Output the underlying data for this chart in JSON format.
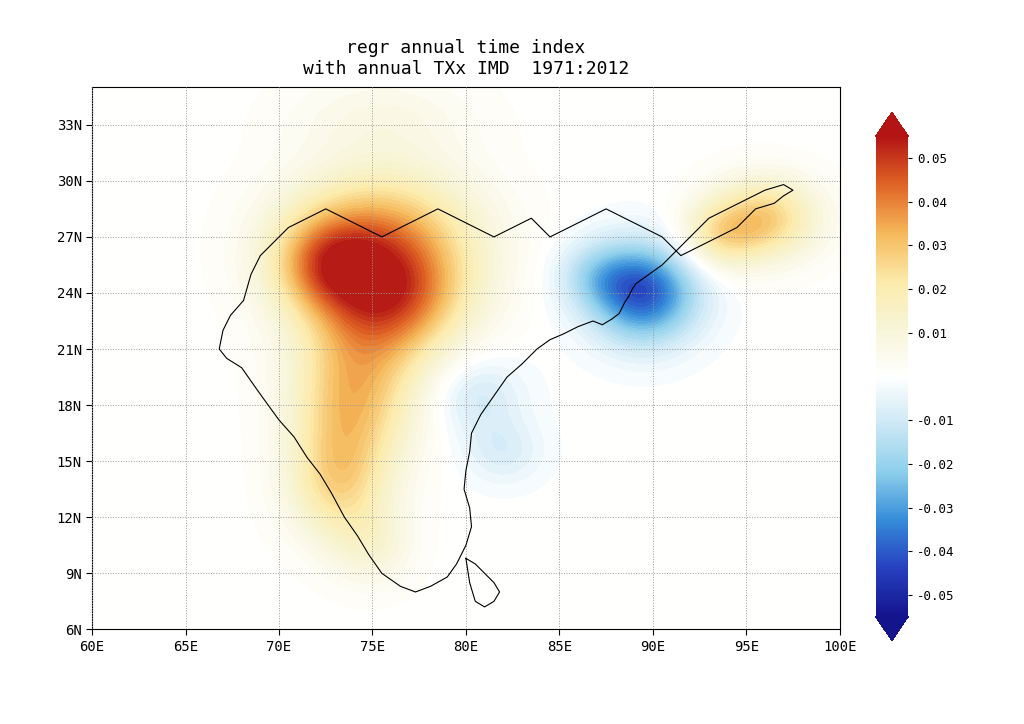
{
  "title_line1": "regr annual time index",
  "title_line2": "with annual TXx IMD  1971:2012",
  "title_fontsize": 13,
  "lon_min": 60,
  "lon_max": 100,
  "lat_min": 6,
  "lat_max": 35,
  "xticks": [
    60,
    65,
    70,
    75,
    80,
    85,
    90,
    95,
    100
  ],
  "yticks": [
    6,
    9,
    12,
    15,
    18,
    21,
    24,
    27,
    30,
    33
  ],
  "xtick_labels": [
    "60E",
    "65E",
    "70E",
    "75E",
    "80E",
    "85E",
    "90E",
    "95E",
    "100E"
  ],
  "ytick_labels": [
    "6N",
    "9N",
    "12N",
    "15N",
    "18N",
    "21N",
    "24N",
    "27N",
    "30N",
    "33N"
  ],
  "colors_neg": [
    "#14148D",
    "#2640BF",
    "#358CD9",
    "#8DCFEB",
    "#CCE8F5"
  ],
  "colors_zero": "#FFFFFF",
  "colors_pos": [
    "#F7F5D8",
    "#FCEAAA",
    "#F5B85A",
    "#E06525",
    "#B31515"
  ],
  "cbar_ticks": [
    0.05,
    0.04,
    0.03,
    0.02,
    0.01,
    -0.01,
    -0.02,
    -0.03,
    -0.04,
    -0.05
  ],
  "grid_color": "#999999",
  "background_color": "#ffffff",
  "warm_blobs": [
    {
      "lon": 75.5,
      "lat": 26.5,
      "amp": 0.038,
      "s_lon": 3.5,
      "s_lat": 2.8
    },
    {
      "lon": 72.5,
      "lat": 25.5,
      "amp": 0.025,
      "s_lon": 2.0,
      "s_lat": 1.8
    },
    {
      "lon": 76.5,
      "lat": 23.5,
      "amp": 0.022,
      "s_lon": 2.5,
      "s_lat": 2.0
    },
    {
      "lon": 74.5,
      "lat": 20.0,
      "amp": 0.022,
      "s_lon": 2.5,
      "s_lat": 3.0
    },
    {
      "lon": 73.5,
      "lat": 16.5,
      "amp": 0.018,
      "s_lon": 2.0,
      "s_lat": 3.0
    },
    {
      "lon": 73.0,
      "lat": 13.5,
      "amp": 0.015,
      "s_lon": 1.8,
      "s_lat": 2.0
    },
    {
      "lon": 96.0,
      "lat": 28.0,
      "amp": 0.028,
      "s_lon": 2.0,
      "s_lat": 1.5
    },
    {
      "lon": 93.5,
      "lat": 27.0,
      "amp": 0.018,
      "s_lon": 1.5,
      "s_lat": 1.2
    },
    {
      "lon": 75.0,
      "lat": 10.5,
      "amp": 0.01,
      "s_lon": 1.5,
      "s_lat": 1.5
    }
  ],
  "cool_blobs": [
    {
      "lon": 89.5,
      "lat": 24.0,
      "amp": -0.042,
      "s_lon": 2.0,
      "s_lat": 1.8
    },
    {
      "lon": 87.0,
      "lat": 25.0,
      "amp": -0.012,
      "s_lon": 1.5,
      "s_lat": 1.2
    },
    {
      "lon": 80.5,
      "lat": 18.5,
      "amp": -0.01,
      "s_lon": 1.8,
      "s_lat": 1.5
    },
    {
      "lon": 82.0,
      "lat": 15.5,
      "amp": -0.008,
      "s_lon": 1.5,
      "s_lat": 1.2
    },
    {
      "lon": 75.5,
      "lat": 33.5,
      "amp": 0.006,
      "s_lon": 3.5,
      "s_lat": 1.5
    }
  ]
}
